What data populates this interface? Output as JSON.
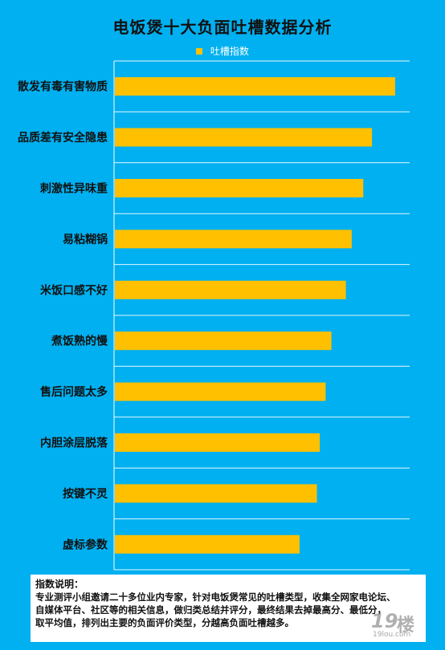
{
  "chart_data": {
    "type": "bar",
    "orientation": "horizontal",
    "title": "电饭煲十大负面吐槽数据分析",
    "categories": [
      "散发有毒有害物质",
      "品质差有安全隐患",
      "刺激性异味重",
      "易粘糊锅",
      "米饭口感不好",
      "煮饭熟的慢",
      "售后问题太多",
      "内胆涂层脱落",
      "按键不灵",
      "虚标参数"
    ],
    "series": [
      {
        "name": "吐槽指数",
        "values": [
          97,
          89,
          86,
          82,
          80,
          75,
          73,
          71,
          70,
          64
        ]
      }
    ],
    "xlim": [
      0,
      102
    ],
    "grid": true,
    "legend_position": "top",
    "bar_color": "#ffc000",
    "background_color": "#00b0f0",
    "gridline_color": "#ffffff"
  },
  "note": {
    "title": "指数说明：",
    "lines": [
      "专业测评小组邀请二十多位业内专家，针对电饭煲常见的吐槽类型，收集全网家电论坛、",
      "自媒体平台、社区等的相关信息，做归类总结并评分，最终结果去掉最高分、最低分，",
      "取平均值，排列出主要的负面评价类型，分越高负面吐槽越多。"
    ]
  },
  "watermark": {
    "number": "19",
    "char": "楼",
    "url": "19lou.com"
  }
}
